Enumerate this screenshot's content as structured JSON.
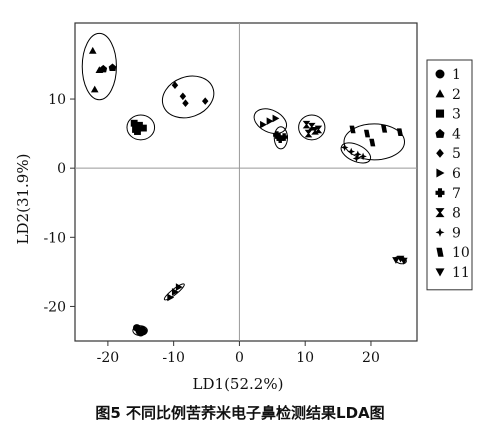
{
  "chart_data": {
    "type": "scatter",
    "caption": "图5 不同比例苦荞米电子鼻检测结果LDA图",
    "xlabel": "LD1(52.2%)",
    "ylabel": "LD2(31.9%)",
    "xlim": [
      -25,
      27
    ],
    "ylim": [
      -25,
      21
    ],
    "xticks": [
      -20,
      -10,
      0,
      10,
      20
    ],
    "yticks": [
      -20,
      -10,
      0,
      10
    ],
    "grid": false,
    "reference_lines": {
      "x": 0,
      "y": 0
    },
    "legend_position": "right",
    "series": [
      {
        "name": "1",
        "marker": "circle",
        "points": [
          [
            -15.6,
            -23.1
          ],
          [
            -15.2,
            -23.6
          ],
          [
            -14.8,
            -23.4
          ],
          [
            -15.0,
            -23.8
          ],
          [
            -14.6,
            -23.6
          ]
        ],
        "ellipse": {
          "cx": -15.1,
          "cy": -23.5,
          "rx": 1.1,
          "ry": 0.7,
          "angle": 0
        }
      },
      {
        "name": "2",
        "marker": "triangle-up",
        "points": [
          [
            -22.3,
            17.0
          ],
          [
            -21.3,
            14.2
          ],
          [
            -22.0,
            11.4
          ]
        ],
        "ellipse": {
          "cx": -21.3,
          "cy": 14.7,
          "rx": 2.6,
          "ry": 4.8,
          "angle": 0
        }
      },
      {
        "name": "3",
        "marker": "square",
        "points": [
          [
            -16.0,
            6.5
          ],
          [
            -15.5,
            5.3
          ],
          [
            -14.6,
            5.8
          ],
          [
            -15.2,
            6.2
          ],
          [
            -15.8,
            5.6
          ]
        ],
        "ellipse": {
          "cx": -15.0,
          "cy": 5.9,
          "rx": 2.1,
          "ry": 1.8,
          "angle": 0
        }
      },
      {
        "name": "4",
        "marker": "pentagon",
        "points": [
          [
            -20.7,
            14.4
          ],
          [
            -19.3,
            14.6
          ]
        ],
        "ellipse": null
      },
      {
        "name": "5",
        "marker": "diamond",
        "points": [
          [
            -9.8,
            12.0
          ],
          [
            -8.6,
            10.4
          ],
          [
            -8.2,
            9.4
          ],
          [
            -5.2,
            9.7
          ]
        ],
        "ellipse": {
          "cx": -7.8,
          "cy": 10.3,
          "rx": 4.0,
          "ry": 2.9,
          "angle": 20
        }
      },
      {
        "name": "6",
        "marker": "triangle-right",
        "points": [
          [
            3.6,
            6.3
          ],
          [
            4.6,
            6.8
          ],
          [
            5.5,
            7.2
          ]
        ],
        "ellipse": {
          "cx": 4.7,
          "cy": 6.8,
          "rx": 2.6,
          "ry": 1.6,
          "angle": -25
        }
      },
      {
        "name": "7",
        "marker": "plus",
        "points": [
          [
            6.0,
            4.5
          ],
          [
            6.2,
            4.2
          ],
          [
            5.7,
            4.8
          ],
          [
            6.8,
            4.5
          ]
        ],
        "ellipse": {
          "cx": 6.3,
          "cy": 4.4,
          "rx": 1.0,
          "ry": 1.6,
          "angle": 0
        }
      },
      {
        "name": "8",
        "marker": "bowtie",
        "points": [
          [
            10.2,
            6.3
          ],
          [
            11.0,
            6.0
          ],
          [
            11.5,
            5.4
          ],
          [
            10.5,
            5.0
          ],
          [
            12.0,
            5.6
          ]
        ],
        "ellipse": {
          "cx": 11.0,
          "cy": 5.9,
          "rx": 2.0,
          "ry": 1.8,
          "angle": 0
        }
      },
      {
        "name": "9",
        "marker": "star4",
        "points": [
          [
            16.0,
            3.0
          ],
          [
            17.0,
            2.4
          ],
          [
            18.0,
            2.0
          ],
          [
            18.8,
            1.7
          ],
          [
            17.8,
            1.4
          ]
        ],
        "ellipse": {
          "cx": 17.7,
          "cy": 2.2,
          "rx": 2.4,
          "ry": 1.2,
          "angle": -25
        }
      },
      {
        "name": "10",
        "marker": "parallelogram",
        "points": [
          [
            17.2,
            5.6
          ],
          [
            19.4,
            5.0
          ],
          [
            22.0,
            5.7
          ],
          [
            24.4,
            5.2
          ],
          [
            20.2,
            3.7
          ]
        ],
        "ellipse": {
          "cx": 20.5,
          "cy": 3.8,
          "rx": 4.6,
          "ry": 2.6,
          "angle": 0
        }
      },
      {
        "name": "11",
        "marker": "triangle-down",
        "points": [
          [
            23.8,
            -13.3
          ],
          [
            24.5,
            -13.1
          ],
          [
            25.0,
            -13.4
          ]
        ],
        "ellipse": {
          "cx": 24.5,
          "cy": -13.3,
          "rx": 0.9,
          "ry": 0.5,
          "angle": -15
        }
      },
      {
        "name": "",
        "marker": "triangle-right",
        "points": [
          [
            -10.5,
            -18.7
          ],
          [
            -9.8,
            -17.9
          ],
          [
            -9.2,
            -17.2
          ]
        ],
        "ellipse": {
          "cx": -9.9,
          "cy": -17.9,
          "rx": 1.9,
          "ry": 0.4,
          "angle": 38
        }
      }
    ]
  }
}
